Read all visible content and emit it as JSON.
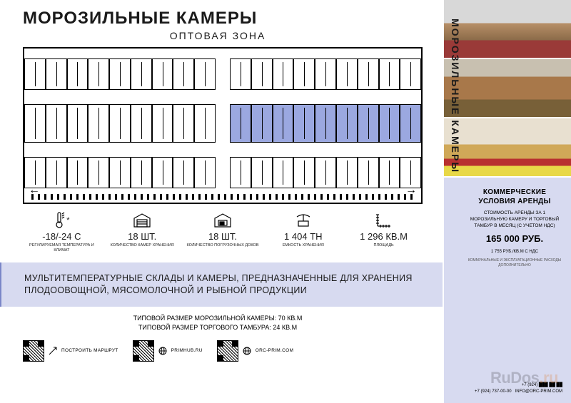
{
  "header": {
    "title": "МОРОЗИЛЬНЫЕ КАМЕРЫ",
    "subtitle": "ОПТОВАЯ ЗОНА"
  },
  "floorplan": {
    "rows": [
      {
        "units": 18,
        "highlighted": []
      },
      {
        "units": 18,
        "highlighted": [
          9,
          10,
          11,
          12,
          13,
          14,
          15,
          16,
          17
        ]
      },
      {
        "units": 18,
        "highlighted": []
      }
    ],
    "highlight_color": "#9ba8e0",
    "border_color": "#000000"
  },
  "stats": [
    {
      "icon": "thermometer",
      "value": "-18/-24 С",
      "label": "РЕГУЛИРУЕМАЯ ТЕМПЕРАТУРА И КЛИМАТ"
    },
    {
      "icon": "warehouse",
      "value": "18 ШТ.",
      "label": "КОЛИЧЕСТВО КАМЕР ХРАНЕНИЯ"
    },
    {
      "icon": "dock",
      "value": "18 ШТ.",
      "label": "КОЛИЧЕСТВО ПОГРУЗОЧНЫХ ДОКОВ"
    },
    {
      "icon": "scale",
      "value": "1 404 ТН",
      "label": "ЕМКОСТЬ ХРАНЕНИЯ"
    },
    {
      "icon": "area",
      "value": "1 296 КВ.М",
      "label": "ПЛОЩАДЬ"
    }
  ],
  "description": "МУЛЬТИТЕМПЕРАТУРНЫЕ СКЛАДЫ И КАМЕРЫ, ПРЕДНАЗНАЧЕННЫЕ ДЛЯ ХРАНЕНИЯ ПЛОДООВОЩНОЙ, МЯСОМОЛОЧНОЙ И РЫБНОЙ ПРОДУКЦИИ",
  "sizes": {
    "line1": "ТИПОВОЙ РАЗМЕР МОРОЗИЛЬНОЙ КАМЕРЫ: 70 КВ.М",
    "line2": "ТИПОВОЙ РАЗМЕР ТОРГОВОГО ТАМБУРА: 24 КВ.М"
  },
  "footer_links": [
    {
      "icon": "route",
      "label": "ПОСТРОИТЬ МАРШРУТ"
    },
    {
      "icon": "globe",
      "label": "PRIMHUB.RU"
    },
    {
      "icon": "globe",
      "label": "ORC-PRIM.COM"
    }
  ],
  "sidebar": {
    "vertical_title": "МОРОЗИЛЬНЫЕ КАМЕРЫ",
    "heading": "КОММЕРЧЕСКИЕ УСЛОВИЯ АРЕНДЫ",
    "text": "СТОИМОСТЬ АРЕНДЫ ЗА 1 МОРОЗИЛЬНУЮ КАМЕРУ И ТОРГОВЫЙ ТАМБУР В МЕСЯЦ (С УЧЕТОМ НДС)",
    "price": "165 000 РУБ.",
    "sub": "1 755 РУБ./КВ.М С НДС",
    "note": "КОММУНАЛЬНЫЕ И ЭКСПЛУАТАЦИОННЫЕ РАСХОДЫ ДОПОЛНИТЕЛЬНО",
    "contacts": {
      "phone1": "+7 (924) ███ ██ ██",
      "phone2": "+7 (924) 737-00-00",
      "email": "INFO@ORC-PRIM.COM"
    }
  },
  "watermark": "RuDos",
  "colors": {
    "lavender": "#d7daf0",
    "accent": "#9ba8e0",
    "text": "#1a1a1a"
  }
}
